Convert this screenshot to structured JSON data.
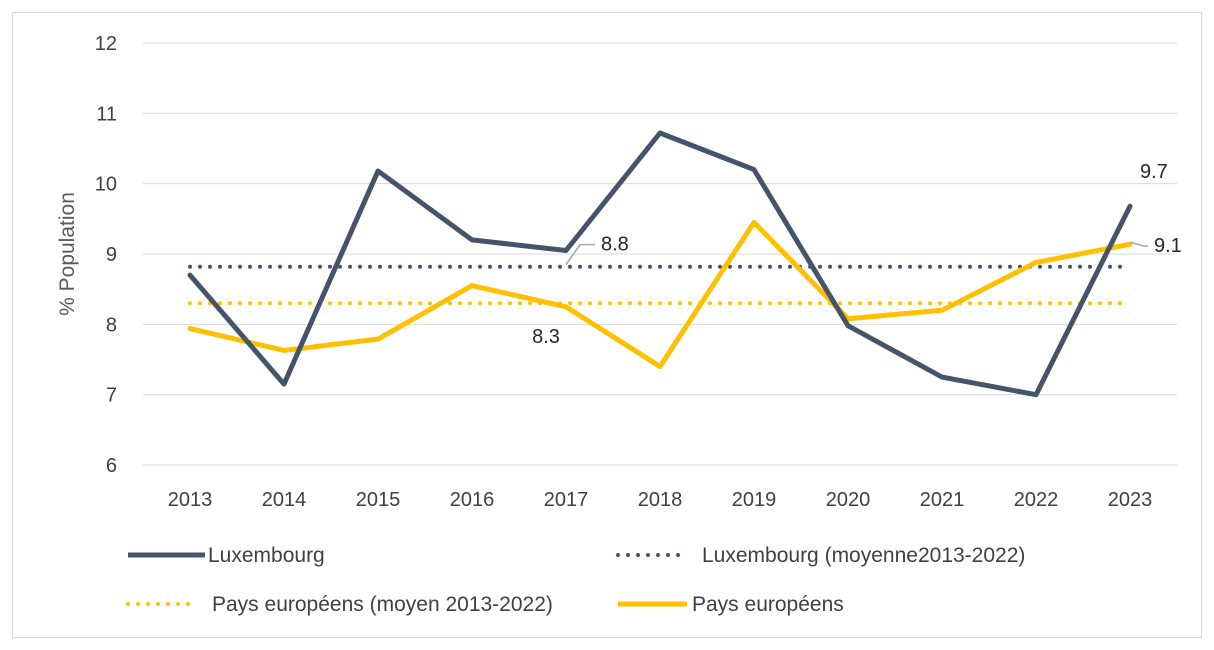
{
  "chart_data": {
    "type": "line",
    "title": "",
    "xlabel": "",
    "ylabel": "% Population",
    "ylim": [
      6,
      12
    ],
    "yticks": [
      6,
      7,
      8,
      9,
      10,
      11,
      12
    ],
    "x": [
      "2013",
      "2014",
      "2015",
      "2016",
      "2017",
      "2018",
      "2019",
      "2020",
      "2021",
      "2022",
      "2023"
    ],
    "grid": true,
    "legend_position": "bottom",
    "series": [
      {
        "name": "Luxembourg",
        "style": "solid",
        "color": "#44546a",
        "values": [
          8.7,
          7.15,
          10.18,
          9.2,
          9.05,
          10.72,
          10.2,
          7.98,
          7.25,
          7.0,
          9.68
        ]
      },
      {
        "name": "Luxembourg (moyenne2013-2022)",
        "style": "dotted",
        "color": "#44546a",
        "values": [
          8.82,
          8.82,
          8.82,
          8.82,
          8.82,
          8.82,
          8.82,
          8.82,
          8.82,
          8.82,
          8.82
        ]
      },
      {
        "name": "Pays européens (moyen 2013-2022)",
        "style": "dotted",
        "color": "#ffc000",
        "values": [
          8.3,
          8.3,
          8.3,
          8.3,
          8.3,
          8.3,
          8.3,
          8.3,
          8.3,
          8.3,
          8.3
        ]
      },
      {
        "name": "Pays européens",
        "style": "solid",
        "color": "#ffc000",
        "values": [
          7.94,
          7.63,
          7.79,
          8.55,
          8.25,
          7.4,
          9.45,
          8.08,
          8.2,
          8.88,
          9.14
        ]
      }
    ],
    "annotations": [
      {
        "text": "8.8",
        "series": 1,
        "index": 4
      },
      {
        "text": "8.3",
        "series": 2,
        "index": 4
      },
      {
        "text": "9.7",
        "series": 0,
        "index": 10
      },
      {
        "text": "9.1",
        "series": 3,
        "index": 10
      }
    ]
  }
}
